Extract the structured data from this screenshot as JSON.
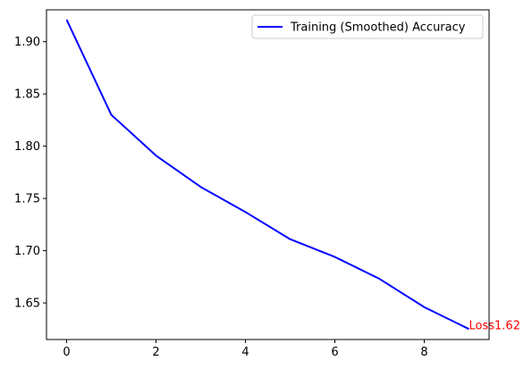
{
  "chart_data": {
    "type": "line",
    "title": "",
    "xlabel": "",
    "ylabel": "",
    "x": [
      0,
      1,
      2,
      3,
      4,
      5,
      6,
      7,
      8,
      9
    ],
    "series": [
      {
        "name": "Training (Smoothed) Accuracy",
        "color": "#0000ff",
        "values": [
          1.921,
          1.83,
          1.791,
          1.761,
          1.737,
          1.711,
          1.694,
          1.673,
          1.646,
          1.625
        ]
      }
    ],
    "xlim": [
      -0.45,
      9.45
    ],
    "ylim": [
      1.615,
      1.9305
    ],
    "xticks": [
      0,
      2,
      4,
      6,
      8
    ],
    "xtick_labels": [
      "0",
      "2",
      "4",
      "6",
      "8"
    ],
    "yticks": [
      1.65,
      1.7,
      1.75,
      1.8,
      1.85,
      1.9
    ],
    "ytick_labels": [
      "1.65",
      "1.70",
      "1.75",
      "1.80",
      "1.85",
      "1.90"
    ],
    "grid": false,
    "legend_position": "top-right",
    "annotation": {
      "text": "Loss1.62",
      "x": 9,
      "y": 1.625,
      "color": "#ff0000"
    }
  }
}
